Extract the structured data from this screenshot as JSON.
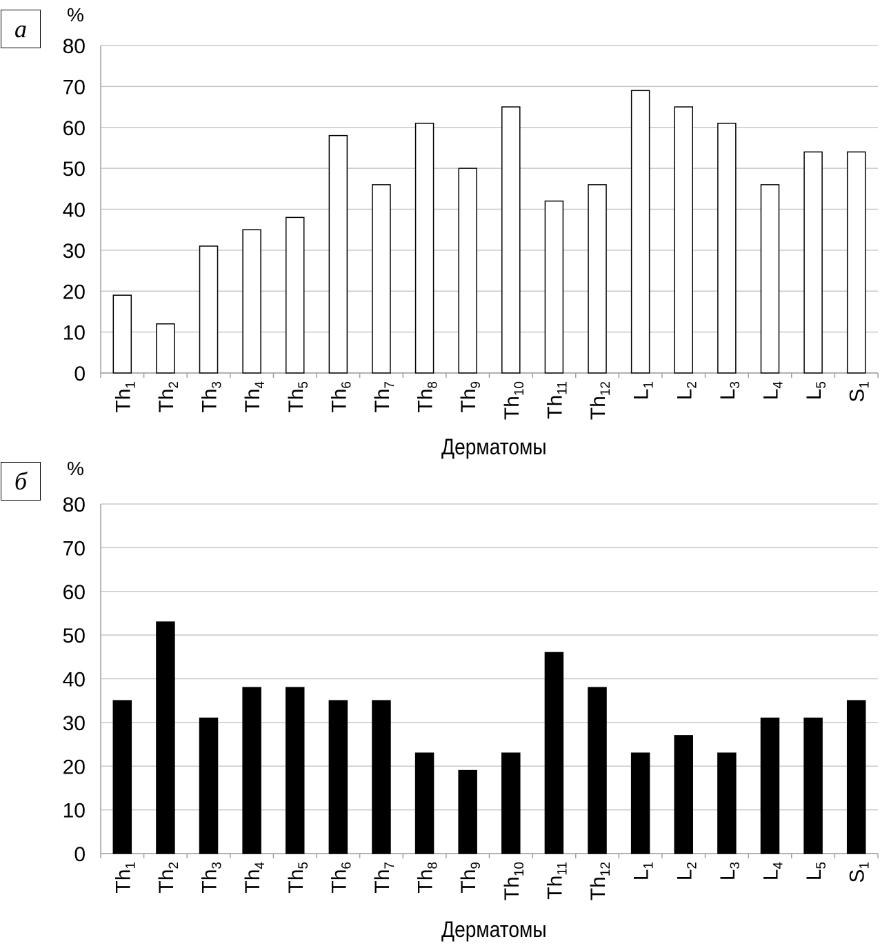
{
  "chart_data": [
    {
      "type": "bar",
      "panel_label": "а",
      "ylabel": "%",
      "xlabel": "Дерматомы",
      "ylim": [
        0,
        80
      ],
      "yticks": [
        0,
        10,
        20,
        30,
        40,
        50,
        60,
        70,
        80
      ],
      "grid": true,
      "bar_fill": "#ffffff",
      "bar_stroke": "#000000",
      "categories": [
        {
          "base": "Th",
          "sub": "1"
        },
        {
          "base": "Th",
          "sub": "2"
        },
        {
          "base": "Th",
          "sub": "3"
        },
        {
          "base": "Th",
          "sub": "4"
        },
        {
          "base": "Th",
          "sub": "5"
        },
        {
          "base": "Th",
          "sub": "6"
        },
        {
          "base": "Th",
          "sub": "7"
        },
        {
          "base": "Th",
          "sub": "8"
        },
        {
          "base": "Th",
          "sub": "9"
        },
        {
          "base": "Th",
          "sub": "10"
        },
        {
          "base": "Th",
          "sub": "11"
        },
        {
          "base": "Th",
          "sub": "12"
        },
        {
          "base": "L",
          "sub": "1"
        },
        {
          "base": "L",
          "sub": "2"
        },
        {
          "base": "L",
          "sub": "3"
        },
        {
          "base": "L",
          "sub": "4"
        },
        {
          "base": "L",
          "sub": "5"
        },
        {
          "base": "S",
          "sub": "1"
        }
      ],
      "values": [
        19,
        12,
        31,
        35,
        38,
        58,
        46,
        61,
        50,
        65,
        42,
        46,
        69,
        65,
        61,
        46,
        54,
        54
      ]
    },
    {
      "type": "bar",
      "panel_label": "б",
      "ylabel": "%",
      "xlabel": "Дерматомы",
      "ylim": [
        0,
        80
      ],
      "yticks": [
        0,
        10,
        20,
        30,
        40,
        50,
        60,
        70,
        80
      ],
      "grid": true,
      "bar_fill": "#000000",
      "bar_stroke": "#000000",
      "categories": [
        {
          "base": "Th",
          "sub": "1"
        },
        {
          "base": "Th",
          "sub": "2"
        },
        {
          "base": "Th",
          "sub": "3"
        },
        {
          "base": "Th",
          "sub": "4"
        },
        {
          "base": "Th",
          "sub": "5"
        },
        {
          "base": "Th",
          "sub": "6"
        },
        {
          "base": "Th",
          "sub": "7"
        },
        {
          "base": "Th",
          "sub": "8"
        },
        {
          "base": "Th",
          "sub": "9"
        },
        {
          "base": "Th",
          "sub": "10"
        },
        {
          "base": "Th",
          "sub": "11"
        },
        {
          "base": "Th",
          "sub": "12"
        },
        {
          "base": "L",
          "sub": "1"
        },
        {
          "base": "L",
          "sub": "2"
        },
        {
          "base": "L",
          "sub": "3"
        },
        {
          "base": "L",
          "sub": "4"
        },
        {
          "base": "L",
          "sub": "5"
        },
        {
          "base": "S",
          "sub": "1"
        }
      ],
      "values": [
        35,
        53,
        31,
        38,
        38,
        35,
        35,
        23,
        19,
        23,
        46,
        38,
        23,
        27,
        23,
        31,
        31,
        35
      ]
    }
  ]
}
